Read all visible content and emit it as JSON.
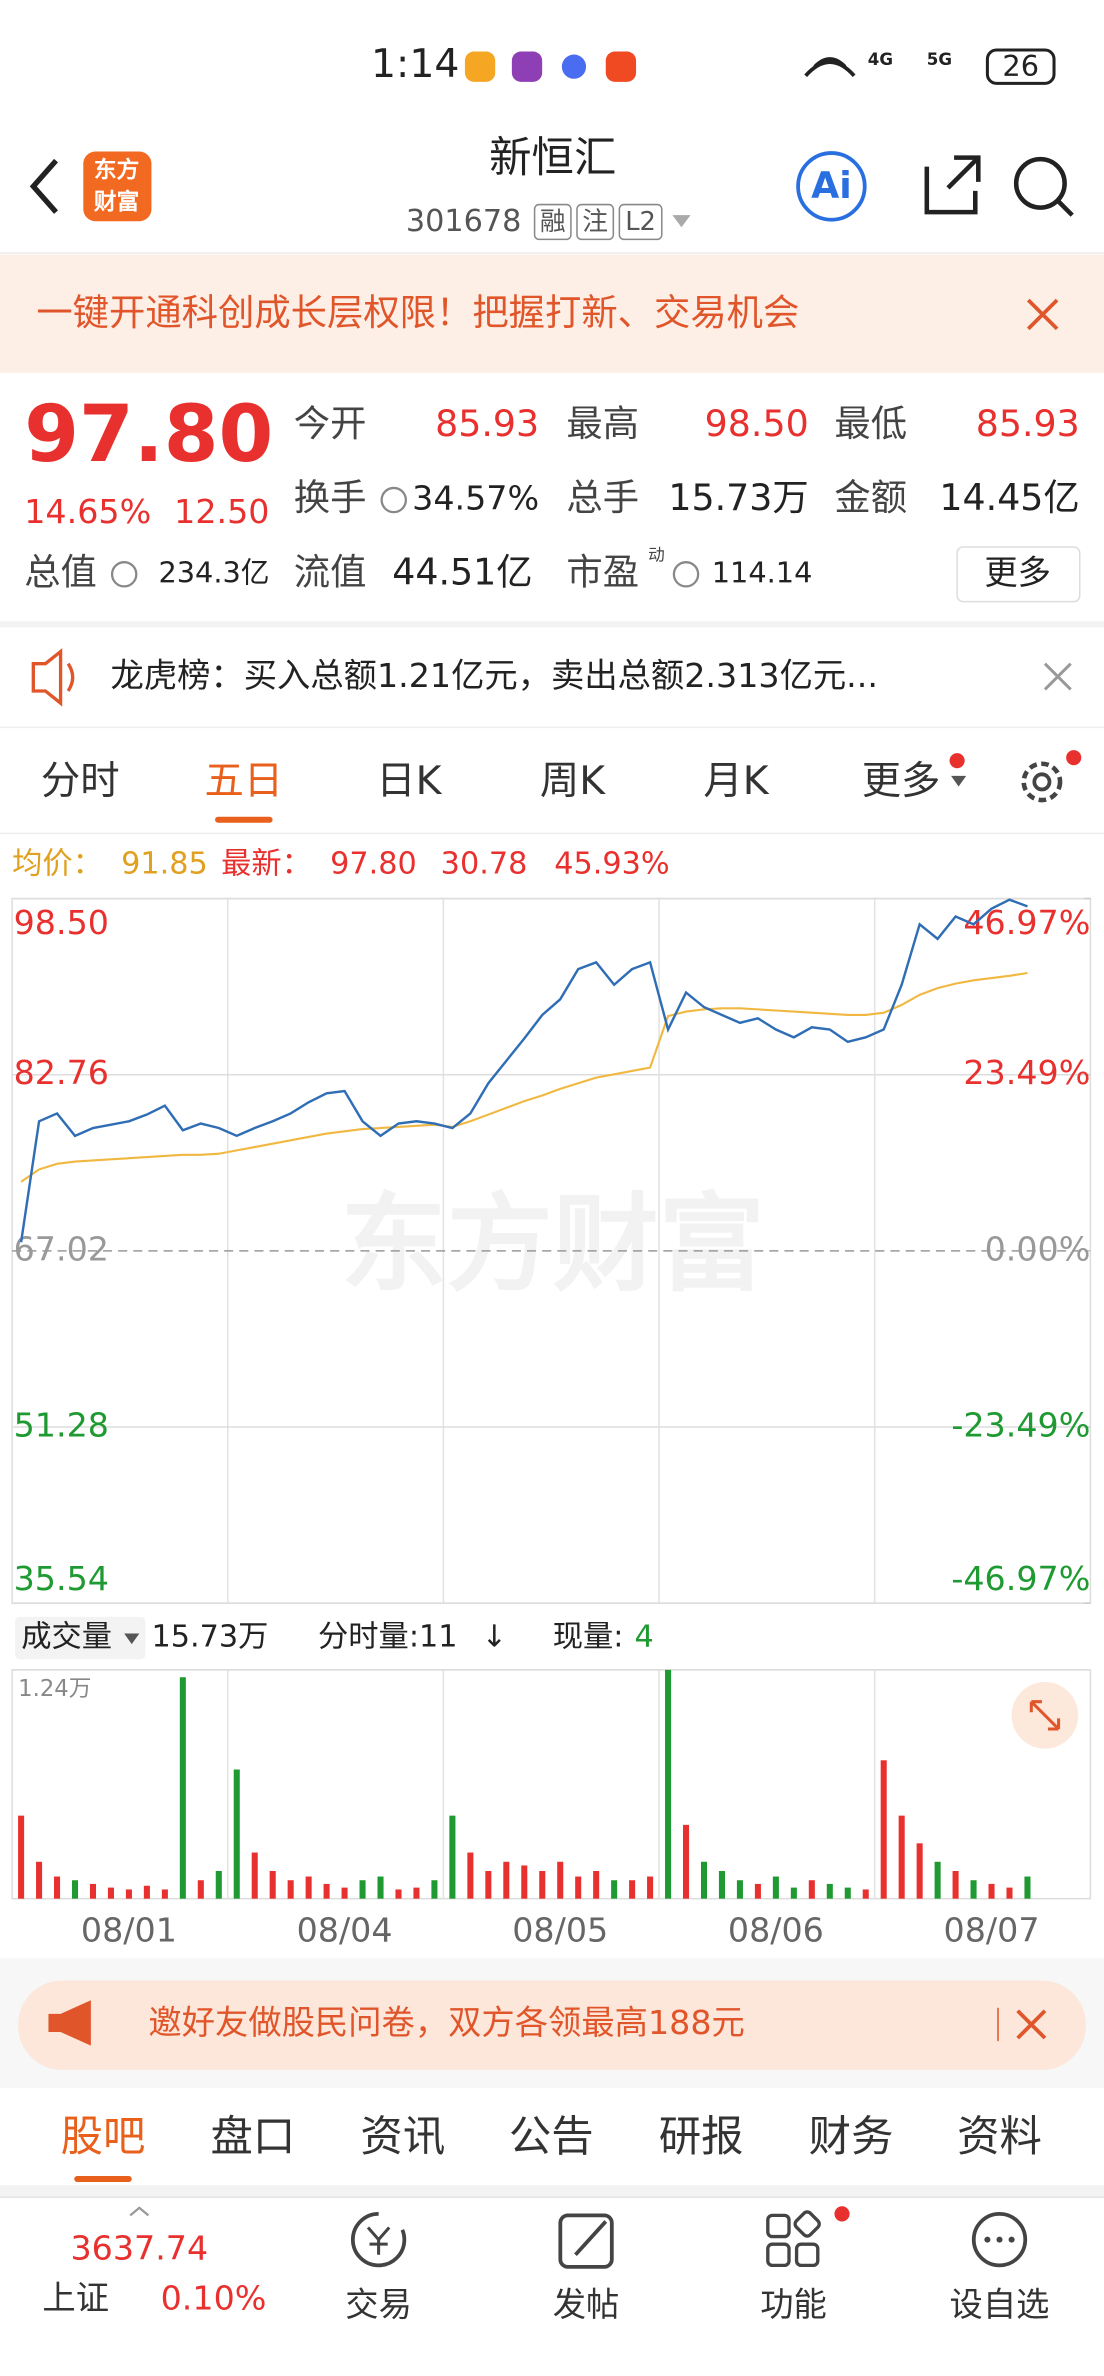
{
  "status_bar": {
    "time": "1:14",
    "network_labels": [
      "4G",
      "5G"
    ],
    "battery": "26"
  },
  "header": {
    "logo": [
      "东方",
      "财富"
    ],
    "title": "新恒汇",
    "code": "301678",
    "tags": [
      "融",
      "注",
      "L2"
    ],
    "ai_button": "Ai"
  },
  "banner": {
    "text": "一键开通科创成长层权限！把握打新、交易机会"
  },
  "quote": {
    "price": "97.80",
    "change_pct": "14.65%",
    "change": "12.50",
    "fields": [
      [
        "今开",
        "85.93"
      ],
      [
        "最高",
        "98.50"
      ],
      [
        "最低",
        "85.93"
      ],
      [
        "换手",
        "34.57%"
      ],
      [
        "总手",
        "15.73万"
      ],
      [
        "金额",
        "14.45亿"
      ],
      [
        "总值",
        "234.3亿"
      ],
      [
        "流值",
        "44.51亿"
      ],
      [
        "市盈",
        "114.14"
      ]
    ],
    "pe_mark": "动",
    "more": "更多"
  },
  "notice": {
    "text": "龙虎榜：买入总额1.21亿元，卖出总额2.313亿元..."
  },
  "period_tabs": {
    "items": [
      "分时",
      "五日",
      "日K",
      "周K",
      "月K",
      "更多"
    ],
    "active": 1
  },
  "chart_data": {
    "type": "line",
    "watermark": "东方财富",
    "legend": {
      "avg_value": "91.85",
      "last_value": "97.80",
      "change": "30.78",
      "change_pct": "45.93%"
    },
    "categories": [
      null,
      null,
      null,
      null,
      null,
      null,
      "08/01",
      null,
      null,
      null,
      null,
      null,
      null,
      null,
      null,
      null,
      null,
      null,
      "08/04",
      null,
      null,
      null,
      null,
      null,
      null,
      null,
      null,
      null,
      null,
      null,
      "08/05",
      null,
      null,
      null,
      null,
      null,
      null,
      null,
      null,
      null,
      null,
      null,
      "08/06",
      null,
      null,
      null,
      null,
      null,
      null,
      null,
      null,
      null,
      null,
      null,
      "08/07",
      null,
      null,
      null,
      null,
      null
    ],
    "series": [
      {
        "name": "最新：",
        "color": "#2f6db5",
        "values": [
          67.8,
          78.6,
          79.3,
          77.3,
          78.0,
          78.3,
          78.6,
          79.2,
          80.0,
          77.8,
          78.4,
          78.0,
          77.3,
          78.0,
          78.6,
          79.3,
          80.3,
          81.1,
          81.3,
          78.6,
          77.3,
          78.4,
          78.6,
          78.4,
          78.0,
          79.3,
          82.0,
          84.0,
          86.0,
          88.1,
          89.5,
          92.2,
          92.8,
          90.8,
          92.2,
          92.8,
          86.8,
          90.1,
          88.8,
          88.1,
          87.4,
          87.8,
          86.8,
          86.1,
          87.0,
          86.8,
          85.7,
          86.1,
          86.8,
          90.8,
          96.2,
          94.9,
          96.9,
          96.2,
          97.6,
          98.4,
          97.8,
          null,
          null,
          null
        ]
      },
      {
        "name": "均价：",
        "color": "#f0b840",
        "values": [
          73.2,
          74.3,
          74.8,
          75.0,
          75.1,
          75.2,
          75.3,
          75.4,
          75.5,
          75.6,
          75.6,
          75.7,
          76.0,
          76.3,
          76.6,
          76.9,
          77.2,
          77.5,
          77.7,
          77.9,
          78.0,
          78.1,
          78.2,
          78.3,
          78.1,
          78.6,
          79.2,
          79.8,
          80.4,
          80.9,
          81.5,
          82.0,
          82.5,
          82.8,
          83.1,
          83.4,
          88.0,
          88.4,
          88.6,
          88.7,
          88.7,
          88.6,
          88.5,
          88.4,
          88.3,
          88.2,
          88.1,
          88.1,
          88.3,
          89.0,
          89.9,
          90.5,
          90.9,
          91.2,
          91.4,
          91.6,
          91.85,
          null,
          null,
          null
        ]
      }
    ],
    "ylim": [
      35.54,
      98.5
    ],
    "yticks": [
      {
        "value": 98.5,
        "label": "98.50"
      },
      82.76,
      67.02,
      51.28,
      35.54
    ],
    "y2lim": [
      -46.97,
      46.97
    ],
    "y2ticks": [
      {
        "value": 46.97,
        "label": "46.97%"
      },
      {
        "value": 23.49,
        "label": "23.49%"
      },
      {
        "value": 0,
        "label": "0.00%"
      },
      {
        "value": -23.49,
        "label": "-23.49%"
      },
      {
        "value": -46.97,
        "label": "-46.97%"
      }
    ],
    "up_color": "#e8312f",
    "down_color": "#1f9a32",
    "volume": {
      "type": "bar",
      "label": "成交量",
      "total": "15.73万",
      "period_volume": "分时量:11",
      "arrow": "↓",
      "current_label": "现量:",
      "current_value": "4",
      "values": [
        0.45,
        0.2,
        0.12,
        0.1,
        0.08,
        0.06,
        0.05,
        0.07,
        0.05,
        1.2,
        0.1,
        0.15,
        0.7,
        0.25,
        0.15,
        0.1,
        0.12,
        0.08,
        0.06,
        0.1,
        0.12,
        0.05,
        0.06,
        0.1,
        0.45,
        0.25,
        0.15,
        0.2,
        0.18,
        0.15,
        0.2,
        0.12,
        0.15,
        0.1,
        0.1,
        0.12,
        1.24,
        0.4,
        0.2,
        0.15,
        0.1,
        0.08,
        0.12,
        0.06,
        0.1,
        0.08,
        0.06,
        0.05,
        0.75,
        0.45,
        0.3,
        0.2,
        0.15,
        0.1,
        0.08,
        0.06,
        0.12,
        null,
        null,
        null
      ],
      "ylim": [
        0,
        1.24
      ],
      "yticks": [
        {
          "value": 1.24,
          "label": "1.24万"
        }
      ]
    }
  },
  "promo": {
    "text": "邀好友做股民问卷，双方各领最高188元"
  },
  "section_tabs": {
    "items": [
      "股吧",
      "盘口",
      "资讯",
      "公告",
      "研报",
      "财务",
      "资料"
    ],
    "active": 0
  },
  "bottom_bar": {
    "index_value": "3637.74",
    "index_name": "上证",
    "index_change": "0.10%",
    "items": [
      "交易",
      "发帖",
      "功能",
      "设自选"
    ]
  }
}
